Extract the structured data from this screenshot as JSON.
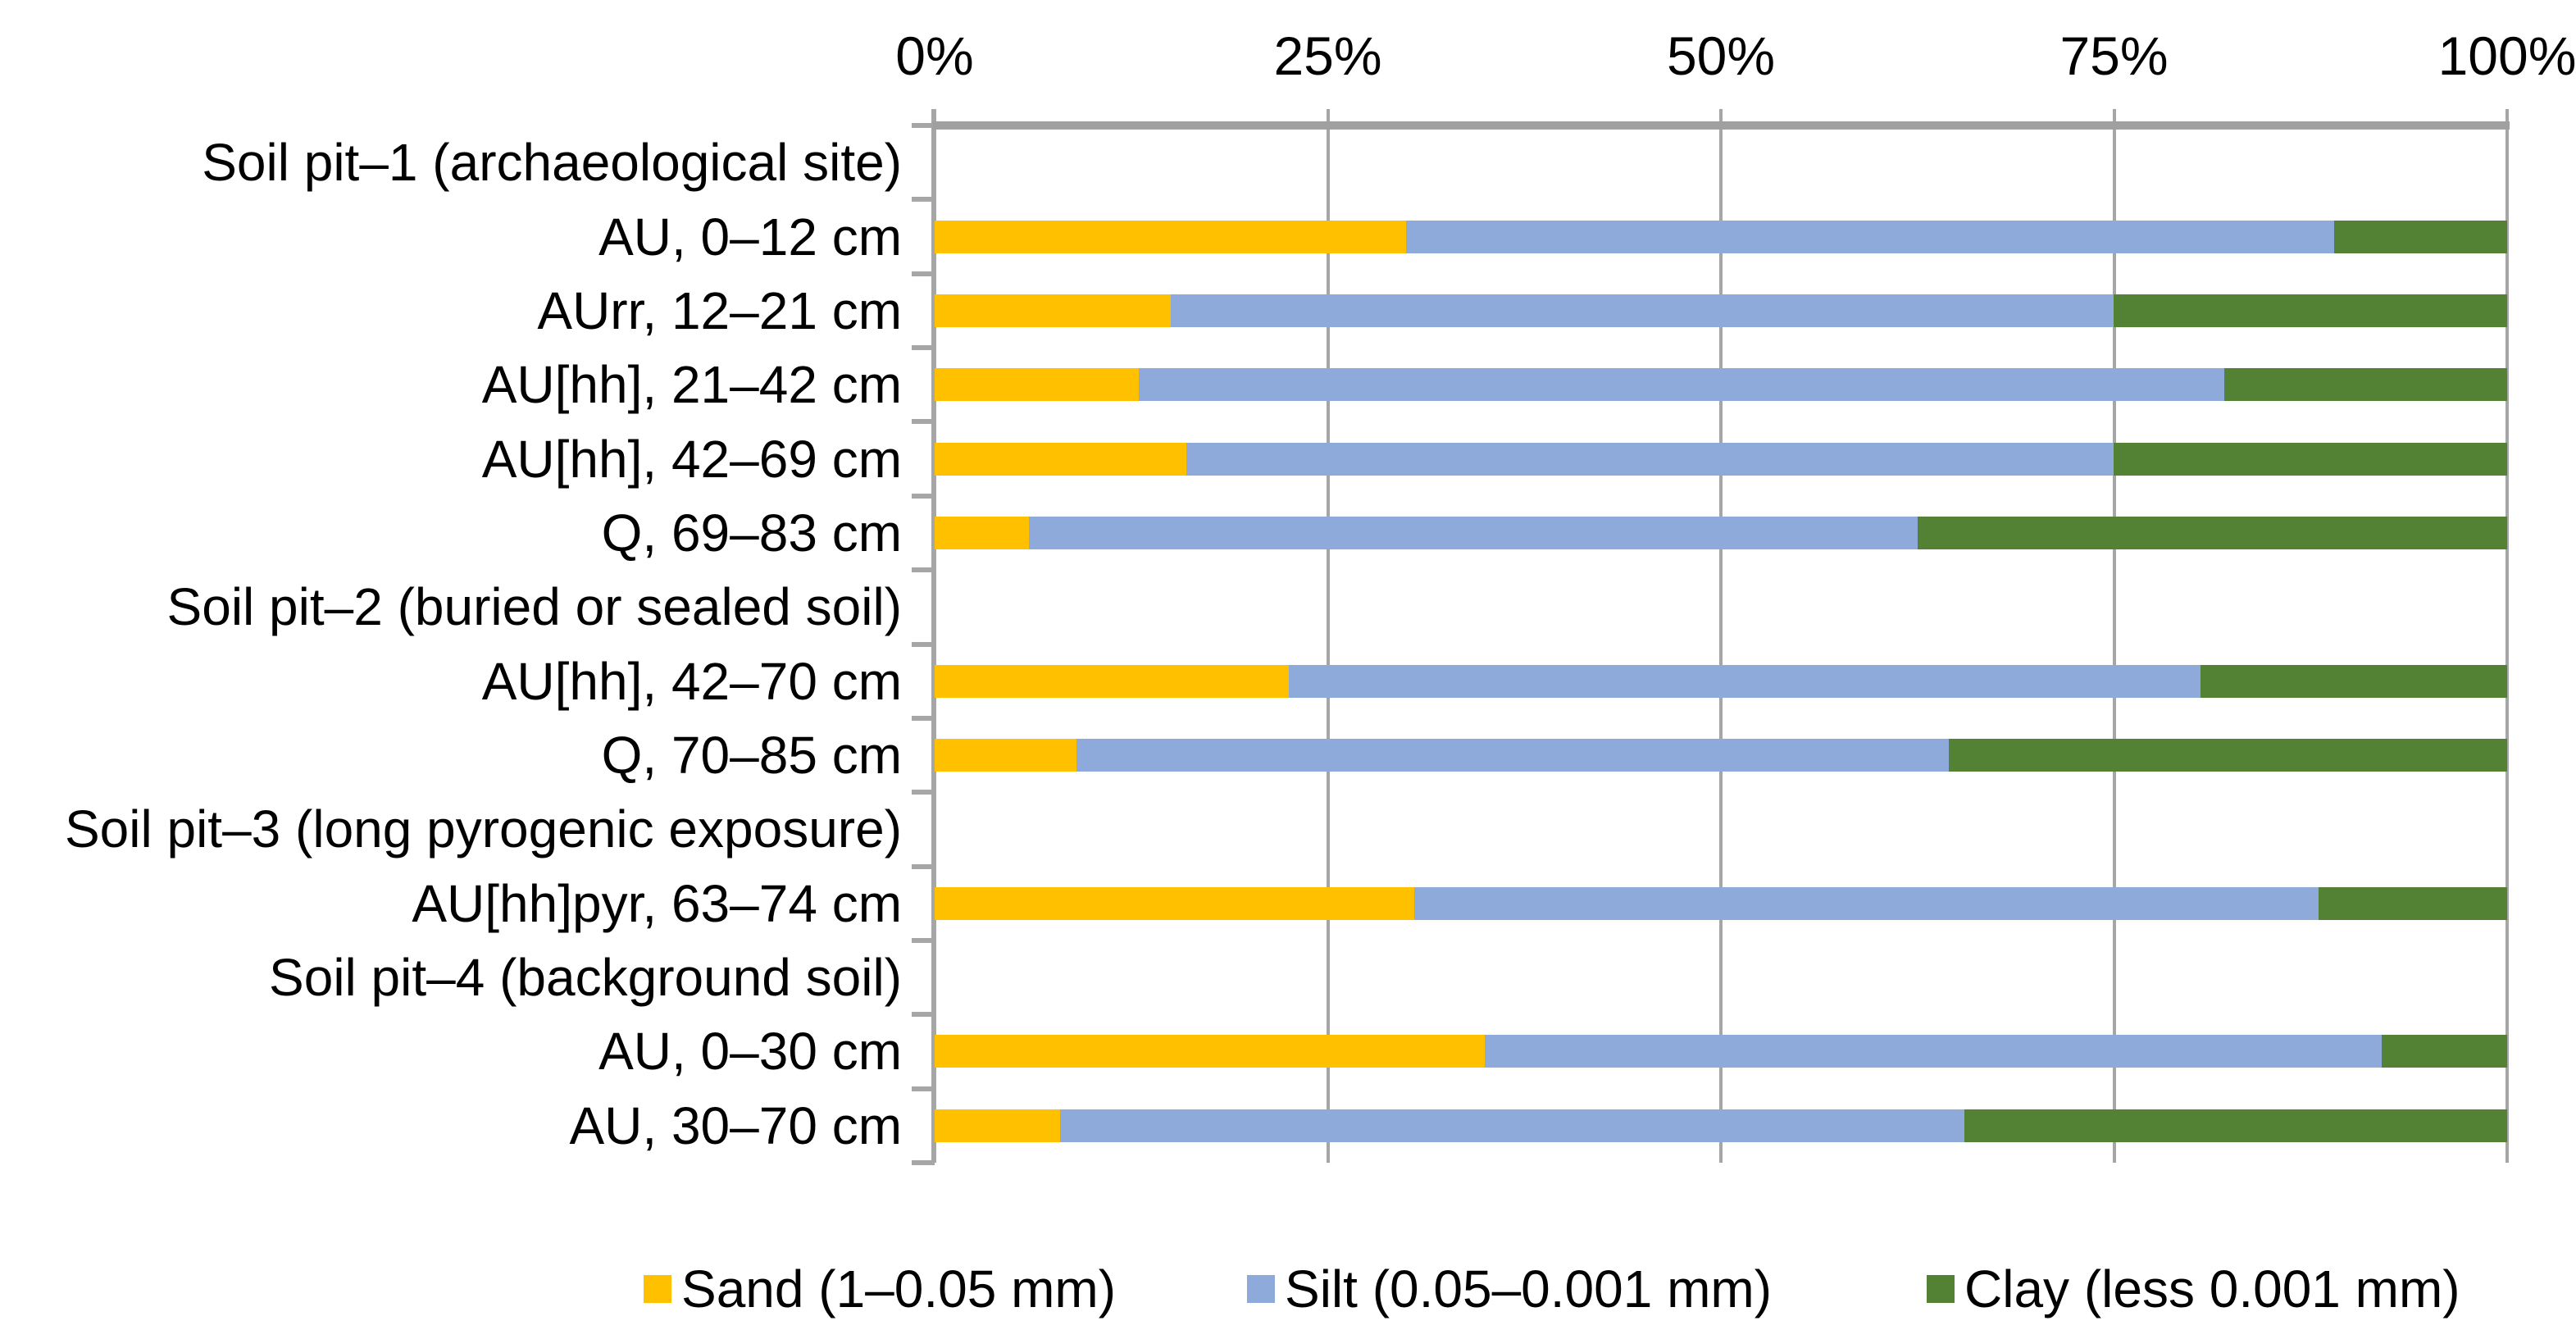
{
  "chart_data": {
    "type": "bar",
    "variant": "horizontal-stacked-100",
    "title": "",
    "x_axis": {
      "position": "top",
      "range": [
        0,
        100
      ],
      "unit": "%",
      "ticks": [
        "0%",
        "25%",
        "50%",
        "75%",
        "100%"
      ],
      "grid": true
    },
    "categories": [
      "Soil pit–1 (archaeological site)",
      "AU, 0–12 cm",
      "AUrr, 12–21 cm",
      "AU[hh], 21–42 cm",
      "AU[hh], 42–69 cm",
      "Q, 69–83 cm",
      "Soil pit–2 (buried or sealed soil)",
      "AU[hh], 42–70 cm",
      "Q, 70–85 cm",
      "Soil pit–3 (long pyrogenic exposure)",
      "AU[hh]pyr, 63–74 cm",
      "Soil pit–4 (background soil)",
      "AU, 0–30 cm",
      "AU, 30–70 cm"
    ],
    "series": [
      {
        "name": "Sand (1–0.05 mm)",
        "color": "#FFC000",
        "values": [
          null,
          30,
          15,
          13,
          16,
          6,
          null,
          22.5,
          9,
          null,
          30.5,
          null,
          35,
          8
        ]
      },
      {
        "name": "Silt (0.05–0.001 mm)",
        "color": "#8EAADB",
        "values": [
          null,
          59,
          60,
          69,
          59,
          56.5,
          null,
          58,
          55.5,
          null,
          57.5,
          null,
          57,
          57.5
        ]
      },
      {
        "name": "Clay (less 0.001 mm)",
        "color": "#538234",
        "values": [
          null,
          11,
          25,
          18,
          25,
          37.5,
          null,
          19.5,
          35.5,
          null,
          12,
          null,
          8,
          34.5
        ]
      }
    ],
    "legend_position": "bottom"
  },
  "colors": {
    "sand": "#FFC000",
    "silt": "#8EAADB",
    "clay": "#538234",
    "gridline": "#A6A6A6",
    "axis_line": "#A0A0A0",
    "text": "#000000",
    "background": "#FFFFFF"
  }
}
